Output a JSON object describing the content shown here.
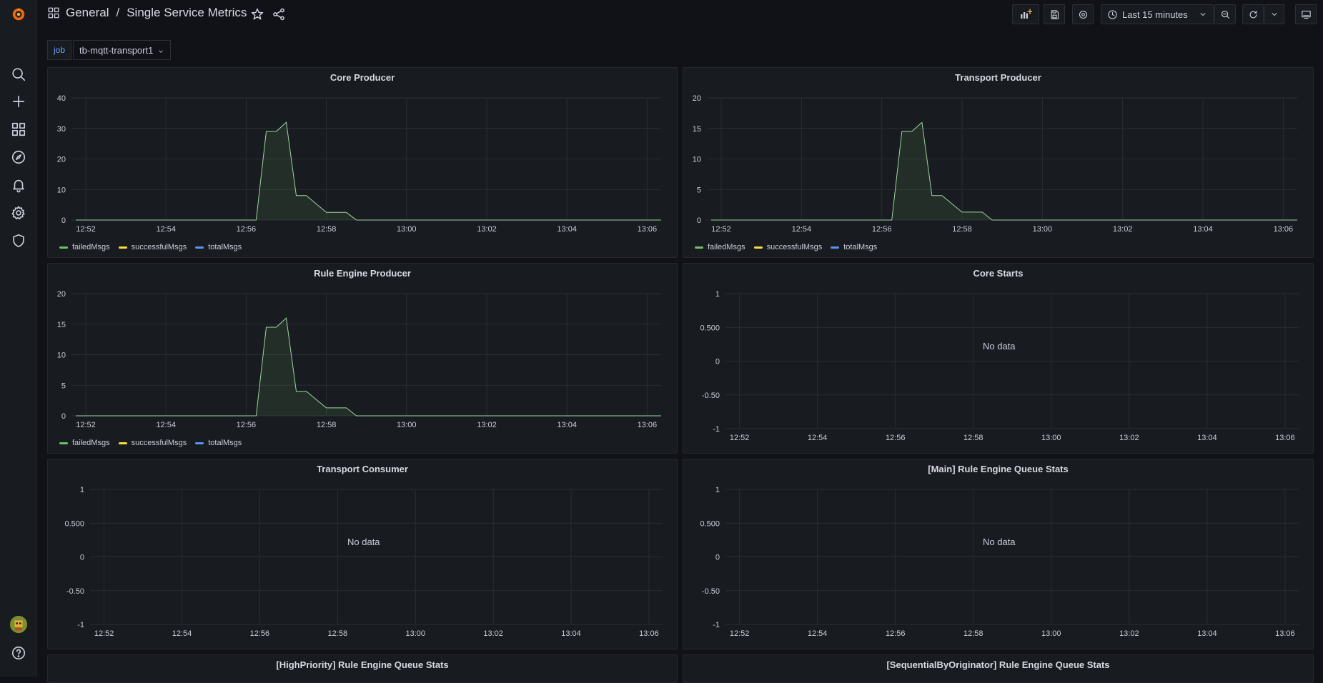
{
  "breadcrumb": {
    "folder": "General",
    "separator": "/",
    "dashboard": "Single Service Metrics"
  },
  "toolbar": {
    "time_range": "Last 15 minutes"
  },
  "variables": [
    {
      "label": "job",
      "value": "tb-mqtt-transport1"
    }
  ],
  "legend_names": [
    "failedMsgs",
    "successfulMsgs",
    "totalMsgs"
  ],
  "colors": {
    "failed": "#73bf69",
    "successful": "#fade2a",
    "total": "#5794f2",
    "accent": "#6e9fff"
  },
  "icons": {
    "logo": "grafana-logo-icon",
    "search": "search-icon",
    "create": "plus-icon",
    "dashboards": "dashboards-icon",
    "explore": "compass-icon",
    "alerting": "bell-icon",
    "config": "gear-icon",
    "admin": "shield-icon",
    "help": "help-icon"
  },
  "panels": [
    {
      "title": "Core Producer"
    },
    {
      "title": "Transport Producer"
    },
    {
      "title": "Rule Engine Producer"
    },
    {
      "title": "Core Starts",
      "no_data_text": "No data"
    },
    {
      "title": "Transport Consumer",
      "no_data_text": "No data"
    },
    {
      "title": "[Main] Rule Engine Queue Stats",
      "no_data_text": "No data"
    },
    {
      "title": "[HighPriority] Rule Engine Queue Stats"
    },
    {
      "title": "[SequentialByOriginator] Rule Engine Queue Stats"
    }
  ],
  "chart_data": [
    {
      "type": "area",
      "title": "Core Producer",
      "x": [
        "12:52",
        "12:54",
        "12:56",
        "12:58",
        "13:00",
        "13:02",
        "13:04",
        "13:06"
      ],
      "ylim": [
        0,
        40
      ],
      "yticks": [
        "0",
        "10",
        "20",
        "30",
        "40"
      ],
      "series": [
        {
          "name": "failedMsgs",
          "points": [
            [
              0,
              0
            ],
            [
              4.5,
              0
            ],
            [
              4.75,
              29
            ],
            [
              5.0,
              29
            ],
            [
              5.25,
              32
            ],
            [
              5.5,
              8
            ],
            [
              5.75,
              8
            ],
            [
              6.25,
              2.5
            ],
            [
              6.75,
              2.5
            ],
            [
              7.0,
              0
            ],
            [
              14.6,
              0
            ]
          ]
        },
        {
          "name": "successfulMsgs",
          "points": []
        },
        {
          "name": "totalMsgs",
          "points": []
        }
      ]
    },
    {
      "type": "area",
      "title": "Transport Producer",
      "x": [
        "12:52",
        "12:54",
        "12:56",
        "12:58",
        "13:00",
        "13:02",
        "13:04",
        "13:06"
      ],
      "ylim": [
        0,
        20
      ],
      "yticks": [
        "0",
        "5",
        "10",
        "15",
        "20"
      ],
      "series": [
        {
          "name": "failedMsgs",
          "points": [
            [
              0,
              0
            ],
            [
              4.5,
              0
            ],
            [
              4.75,
              14.5
            ],
            [
              5.0,
              14.5
            ],
            [
              5.25,
              16
            ],
            [
              5.5,
              4
            ],
            [
              5.75,
              4
            ],
            [
              6.25,
              1.3
            ],
            [
              6.75,
              1.3
            ],
            [
              7.0,
              0
            ],
            [
              14.6,
              0
            ]
          ]
        },
        {
          "name": "successfulMsgs",
          "points": []
        },
        {
          "name": "totalMsgs",
          "points": []
        }
      ]
    },
    {
      "type": "area",
      "title": "Rule Engine Producer",
      "x": [
        "12:52",
        "12:54",
        "12:56",
        "12:58",
        "13:00",
        "13:02",
        "13:04",
        "13:06"
      ],
      "ylim": [
        0,
        20
      ],
      "yticks": [
        "0",
        "5",
        "10",
        "15",
        "20"
      ],
      "series": [
        {
          "name": "failedMsgs",
          "points": [
            [
              0,
              0
            ],
            [
              4.5,
              0
            ],
            [
              4.75,
              14.5
            ],
            [
              5.0,
              14.5
            ],
            [
              5.25,
              16
            ],
            [
              5.5,
              4
            ],
            [
              5.75,
              4
            ],
            [
              6.25,
              1.3
            ],
            [
              6.75,
              1.3
            ],
            [
              7.0,
              0
            ],
            [
              14.6,
              0
            ]
          ]
        },
        {
          "name": "successfulMsgs",
          "points": []
        },
        {
          "name": "totalMsgs",
          "points": []
        }
      ]
    },
    {
      "type": "line",
      "title": "Core Starts",
      "x": [
        "12:52",
        "12:54",
        "12:56",
        "12:58",
        "13:00",
        "13:02",
        "13:04",
        "13:06"
      ],
      "ylim": [
        -1,
        1
      ],
      "yticks": [
        "-1",
        "-0.50",
        "0",
        "0.500",
        "1"
      ],
      "series": []
    },
    {
      "type": "line",
      "title": "Transport Consumer",
      "x": [
        "12:52",
        "12:54",
        "12:56",
        "12:58",
        "13:00",
        "13:02",
        "13:04",
        "13:06"
      ],
      "ylim": [
        -1,
        1
      ],
      "yticks": [
        "-1",
        "-0.50",
        "0",
        "0.500",
        "1"
      ],
      "series": []
    },
    {
      "type": "line",
      "title": "[Main] Rule Engine Queue Stats",
      "x": [
        "12:52",
        "12:54",
        "12:56",
        "12:58",
        "13:00",
        "13:02",
        "13:04",
        "13:06"
      ],
      "ylim": [
        -1,
        1
      ],
      "yticks": [
        "-1",
        "-0.50",
        "0",
        "0.500",
        "1"
      ],
      "series": []
    }
  ]
}
